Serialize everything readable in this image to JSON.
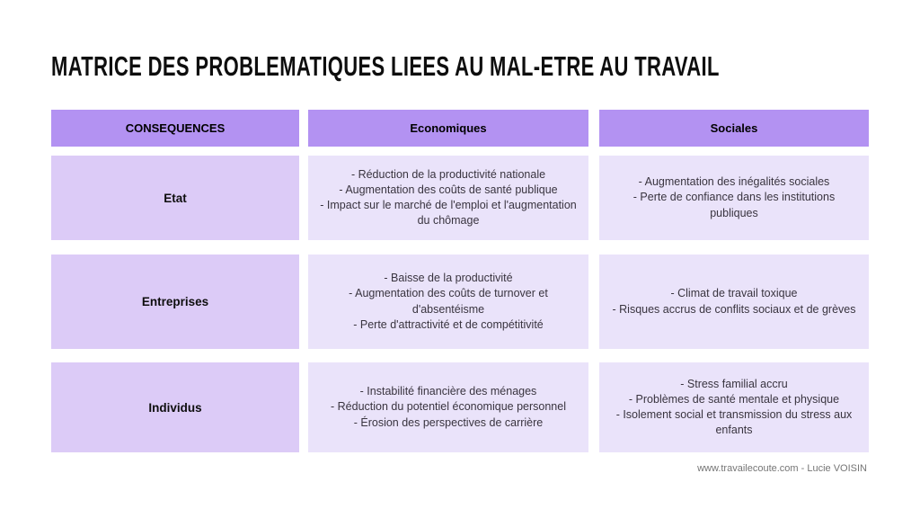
{
  "title": "MATRICE DES PROBLEMATIQUES LIEES AU MAL-ETRE AU TRAVAIL",
  "colors": {
    "header_bg": "#b392f2",
    "label_bg": "#dccbf7",
    "cell_bg": "#eae3fa"
  },
  "table": {
    "headers": [
      "CONSEQUENCES",
      "Economiques",
      "Sociales"
    ],
    "rows": [
      {
        "label": "Etat",
        "economiques": [
          "- Réduction de la productivité nationale",
          "- Augmentation des coûts de santé publique",
          "- Impact sur le marché de l'emploi et l'augmentation du chômage"
        ],
        "sociales": [
          "- Augmentation des inégalités sociales",
          "- Perte de confiance dans les institutions publiques"
        ]
      },
      {
        "label": "Entreprises",
        "economiques": [
          "- Baisse de la productivité",
          "- Augmentation des coûts de turnover et d'absentéisme",
          "- Perte d'attractivité et de compétitivité"
        ],
        "sociales": [
          "- Climat de travail toxique",
          "- Risques accrus de conflits sociaux et de grèves"
        ]
      },
      {
        "label": "Individus",
        "economiques": [
          "- Instabilité financière des ménages",
          "- Réduction du potentiel économique personnel",
          "- Érosion des perspectives de carrière"
        ],
        "sociales": [
          "- Stress familial accru",
          "- Problèmes de santé mentale et physique",
          "- Isolement social et transmission du stress aux enfants"
        ]
      }
    ]
  },
  "footer": {
    "credit": "www.travailecoute.com - Lucie VOISIN"
  }
}
